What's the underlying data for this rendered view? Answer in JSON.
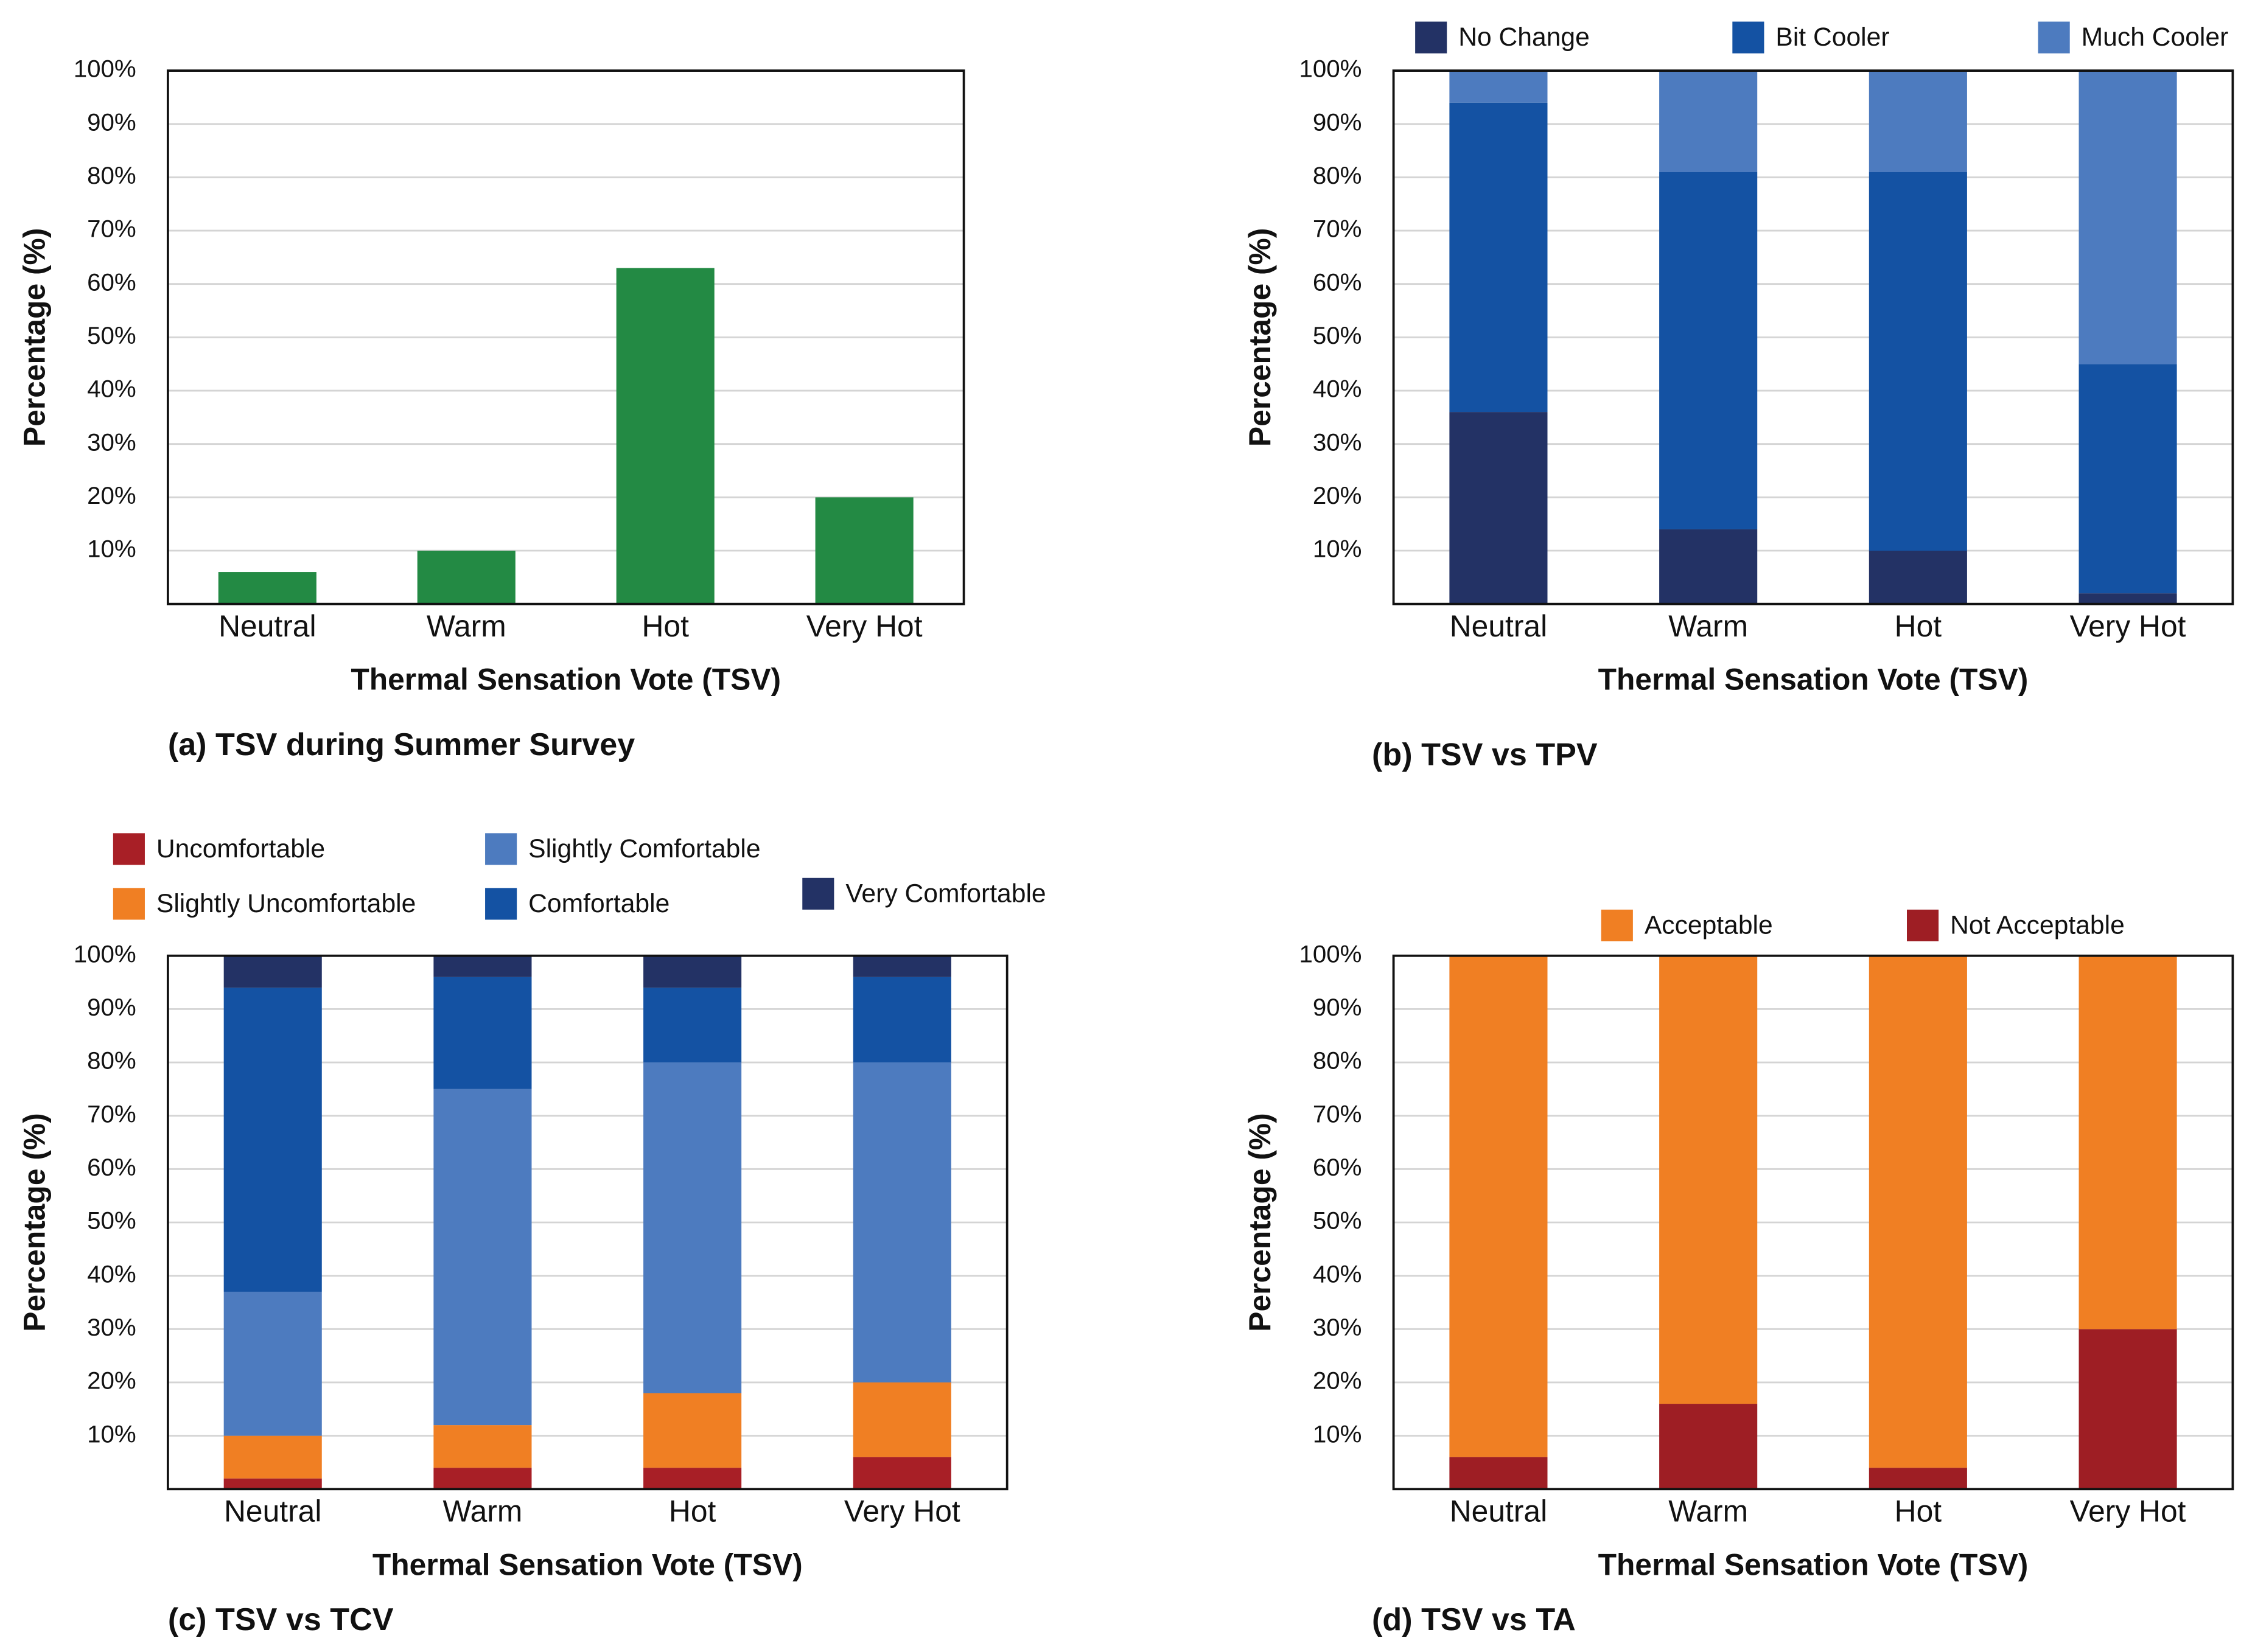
{
  "chart_data": [
    {
      "type": "bar",
      "title": "(a) TSV during Summer Survey",
      "xlabel": "Thermal Sensation Vote (TSV)",
      "ylabel": "Percentage (%)",
      "categories": [
        "Neutral",
        "Warm",
        "Hot",
        "Very Hot"
      ],
      "values": [
        6,
        10,
        63,
        20
      ],
      "color": "#238a44",
      "ylim": [
        0,
        100
      ],
      "yticks": [
        {
          "value": 10,
          "label": "10%"
        },
        {
          "value": 20,
          "label": "20%"
        },
        {
          "value": 30,
          "label": "30%"
        },
        {
          "value": 40,
          "label": "40%"
        },
        {
          "value": 50,
          "label": "50%"
        },
        {
          "value": 60,
          "label": "60%"
        },
        {
          "value": 70,
          "label": "70%"
        },
        {
          "value": 80,
          "label": "80%"
        },
        {
          "value": 90,
          "label": "90%"
        },
        {
          "value": 100,
          "label": "100%"
        }
      ],
      "grid": true
    },
    {
      "type": "stacked_bar",
      "title": "(b) TSV vs TPV",
      "xlabel": "Thermal Sensation Vote (TSV)",
      "ylabel": "Percentage (%)",
      "categories": [
        "Neutral",
        "Warm",
        "Hot",
        "Very Hot"
      ],
      "series": [
        {
          "name": "No Change",
          "color": "#233265",
          "values": [
            36,
            14,
            10,
            2
          ]
        },
        {
          "name": "Bit Cooler",
          "color": "#1452a3",
          "values": [
            58,
            67,
            71,
            43
          ]
        },
        {
          "name": "Much Cooler",
          "color": "#4d7bbf",
          "values": [
            6,
            19,
            19,
            55
          ]
        }
      ],
      "ylim": [
        0,
        100
      ],
      "yticks": [
        {
          "value": 10,
          "label": "10%"
        },
        {
          "value": 20,
          "label": "20%"
        },
        {
          "value": 30,
          "label": "30%"
        },
        {
          "value": 40,
          "label": "40%"
        },
        {
          "value": 50,
          "label": "50%"
        },
        {
          "value": 60,
          "label": "60%"
        },
        {
          "value": 70,
          "label": "70%"
        },
        {
          "value": 80,
          "label": "80%"
        },
        {
          "value": 90,
          "label": "90%"
        },
        {
          "value": 100,
          "label": "100%"
        }
      ],
      "grid": true
    },
    {
      "type": "stacked_bar",
      "title": "(c) TSV vs TCV",
      "xlabel": "Thermal Sensation Vote (TSV)",
      "ylabel": "Percentage (%)",
      "categories": [
        "Neutral",
        "Warm",
        "Hot",
        "Very Hot"
      ],
      "series": [
        {
          "name": "Uncomfortable",
          "color": "#a81f26",
          "values": [
            2,
            4,
            4,
            6
          ]
        },
        {
          "name": "Slightly Uncomfortable",
          "color": "#f07f23",
          "values": [
            8,
            8,
            14,
            14
          ]
        },
        {
          "name": "Slightly Comfortable",
          "color": "#4d7bbf",
          "values": [
            27,
            63,
            62,
            60
          ]
        },
        {
          "name": "Comfortable",
          "color": "#1452a3",
          "values": [
            57,
            21,
            14,
            16
          ]
        },
        {
          "name": "Very Comfortable",
          "color": "#233265",
          "values": [
            6,
            4,
            6,
            4
          ]
        }
      ],
      "ylim": [
        0,
        100
      ],
      "yticks": [
        {
          "value": 10,
          "label": "10%"
        },
        {
          "value": 20,
          "label": "20%"
        },
        {
          "value": 30,
          "label": "30%"
        },
        {
          "value": 40,
          "label": "40%"
        },
        {
          "value": 50,
          "label": "50%"
        },
        {
          "value": 60,
          "label": "60%"
        },
        {
          "value": 70,
          "label": "70%"
        },
        {
          "value": 80,
          "label": "80%"
        },
        {
          "value": 90,
          "label": "90%"
        },
        {
          "value": 100,
          "label": "100%"
        }
      ],
      "grid": true
    },
    {
      "type": "stacked_bar",
      "title": "(d) TSV vs TA",
      "xlabel": "Thermal Sensation Vote (TSV)",
      "ylabel": "Percentage (%)",
      "categories": [
        "Neutral",
        "Warm",
        "Hot",
        "Very Hot"
      ],
      "series": [
        {
          "name": "Not Acceptable",
          "color": "#9e1e24",
          "values": [
            6,
            16,
            4,
            30
          ]
        },
        {
          "name": "Acceptable",
          "color": "#f07f23",
          "values": [
            94,
            84,
            96,
            70
          ]
        }
      ],
      "ylim": [
        0,
        100
      ],
      "yticks": [
        {
          "value": 10,
          "label": "10%"
        },
        {
          "value": 20,
          "label": "20%"
        },
        {
          "value": 30,
          "label": "30%"
        },
        {
          "value": 40,
          "label": "40%"
        },
        {
          "value": 50,
          "label": "50%"
        },
        {
          "value": 60,
          "label": "60%"
        },
        {
          "value": 70,
          "label": "70%"
        },
        {
          "value": 80,
          "label": "80%"
        },
        {
          "value": 90,
          "label": "90%"
        },
        {
          "value": 100,
          "label": "100%"
        }
      ],
      "grid": true
    }
  ]
}
